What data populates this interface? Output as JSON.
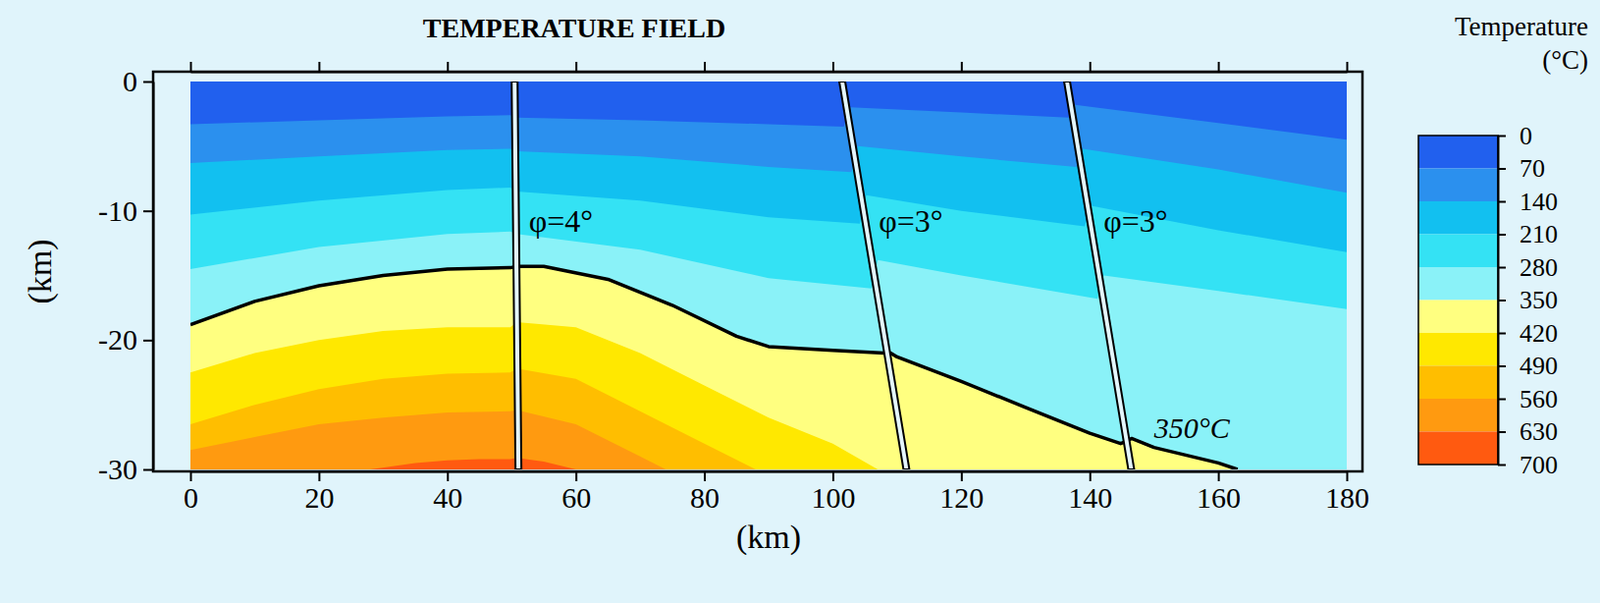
{
  "chart_data": {
    "type": "contour",
    "title": "TEMPERATURE FIELD",
    "x_label": "(km)",
    "y_label": "(km)",
    "xlim": [
      0,
      180
    ],
    "ylim": [
      -30,
      0
    ],
    "xticks": [
      0,
      20,
      40,
      60,
      80,
      100,
      120,
      140,
      160,
      180
    ],
    "yticks": [
      0,
      -10,
      -20,
      -30
    ],
    "colorbar": {
      "title": "Temperature",
      "unit_label": "(°C)",
      "levels": [
        0,
        70,
        140,
        210,
        280,
        350,
        420,
        490,
        560,
        630,
        700
      ],
      "colors": [
        "#2160ee",
        "#2b90ee",
        "#12c0f0",
        "#34e2f4",
        "#8af2f8",
        "#ffff80",
        "#ffe800",
        "#ffbe00",
        "#ff9a10",
        "#ff5a10"
      ]
    },
    "isotherms": [
      {
        "level": 70,
        "x": [
          0,
          20,
          40,
          49.8,
          50.8,
          70,
          90,
          101.7,
          102.7,
          120,
          136.7,
          137.7,
          160,
          180
        ],
        "y": [
          -3.3,
          -3.0,
          -2.7,
          -2.6,
          -2.8,
          -3.0,
          -3.3,
          -3.5,
          -2.0,
          -2.4,
          -2.8,
          -1.8,
          -3.2,
          -4.5
        ]
      },
      {
        "level": 140,
        "x": [
          0,
          20,
          40,
          49.8,
          50.8,
          70,
          90,
          102.9,
          103.9,
          120,
          137.9,
          138.9,
          160,
          180
        ],
        "y": [
          -6.3,
          -5.8,
          -5.3,
          -5.2,
          -5.4,
          -5.8,
          -6.6,
          -7.0,
          -5.0,
          -5.8,
          -6.6,
          -5.2,
          -6.8,
          -8.6
        ]
      },
      {
        "level": 210,
        "x": [
          0,
          20,
          40,
          49.8,
          50.8,
          70,
          90,
          104.2,
          105.2,
          120,
          139.2,
          140.2,
          160,
          180
        ],
        "y": [
          -10.3,
          -9.2,
          -8.4,
          -8.2,
          -8.5,
          -9.2,
          -10.5,
          -11.0,
          -8.8,
          -10.0,
          -11.2,
          -9.6,
          -11.5,
          -13.2
        ]
      },
      {
        "level": 280,
        "x": [
          0,
          20,
          40,
          49.8,
          50.8,
          70,
          90,
          106,
          107,
          120,
          141.2,
          142.2,
          160,
          180
        ],
        "y": [
          -14.5,
          -12.8,
          -11.8,
          -11.6,
          -11.8,
          -13.0,
          -15.2,
          -16.0,
          -13.8,
          -15.0,
          -16.8,
          -15.0,
          -16.2,
          -17.6
        ]
      },
      {
        "level": 350,
        "x": [
          0,
          10,
          20,
          30,
          40,
          49.8,
          50.8,
          55,
          65,
          75,
          85,
          90,
          100,
          108,
          109,
          110,
          120,
          130,
          140,
          144.8,
          145.8,
          146.5,
          150,
          160,
          163
        ],
        "y": [
          -18.8,
          -17.0,
          -15.8,
          -15.0,
          -14.5,
          -14.4,
          -14.3,
          -14.3,
          -15.3,
          -17.3,
          -19.7,
          -20.5,
          -20.8,
          -21.0,
          -21.0,
          -21.3,
          -23.2,
          -25.2,
          -27.2,
          -28.0,
          -27.8,
          -27.6,
          -28.3,
          -29.5,
          -30
        ]
      },
      {
        "level": 420,
        "x": [
          0,
          10,
          20,
          30,
          40,
          49.8,
          50.8,
          60,
          70,
          80,
          90,
          100,
          107
        ],
        "y": [
          -22.5,
          -21.0,
          -20.0,
          -19.3,
          -19.0,
          -19.0,
          -18.6,
          -19.0,
          -21.0,
          -23.5,
          -26.0,
          -28.0,
          -30
        ]
      },
      {
        "level": 490,
        "x": [
          0,
          10,
          20,
          30,
          40,
          49.8,
          50.8,
          60,
          70,
          80,
          88
        ],
        "y": [
          -26.5,
          -25.0,
          -23.8,
          -23.0,
          -22.6,
          -22.5,
          -22.2,
          -23.0,
          -25.5,
          -28.0,
          -30
        ]
      },
      {
        "level": 560,
        "x": [
          0,
          10,
          20,
          30,
          40,
          49.8,
          50.8,
          60,
          70,
          74
        ],
        "y": [
          -28.5,
          -27.5,
          -26.5,
          -26.0,
          -25.6,
          -25.5,
          -25.4,
          -26.5,
          -29.0,
          -30
        ]
      },
      {
        "level": 630,
        "x": [
          28,
          35,
          40,
          45,
          49.8,
          50.8,
          55,
          60
        ],
        "y": [
          -30,
          -29.5,
          -29.3,
          -29.2,
          -29.2,
          -29.1,
          -29.4,
          -30
        ]
      }
    ],
    "faults": [
      {
        "label": "φ=4°",
        "x_top": 50,
        "x_bottom": 50.6
      },
      {
        "label": "φ=3°",
        "x_top": 101,
        "x_bottom": 111
      },
      {
        "label": "φ=3°",
        "x_top": 136,
        "x_bottom": 146
      }
    ],
    "annotations": [
      {
        "text": "350°C",
        "level": 350
      }
    ]
  }
}
